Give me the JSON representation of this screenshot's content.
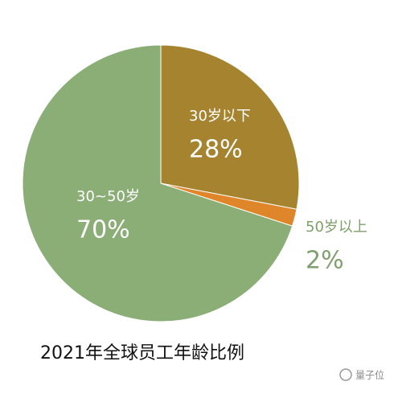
{
  "chart_data": {
    "type": "pie",
    "title": "2021年全球员工年龄比例",
    "categories": [
      "30岁以下",
      "50岁以上",
      "30~50岁"
    ],
    "values": [
      28,
      2,
      70
    ],
    "value_labels": [
      "28%",
      "2%",
      "70%"
    ],
    "colors": [
      "#a6842f",
      "#e0862a",
      "#8aae76"
    ]
  },
  "watermark": "量子位"
}
